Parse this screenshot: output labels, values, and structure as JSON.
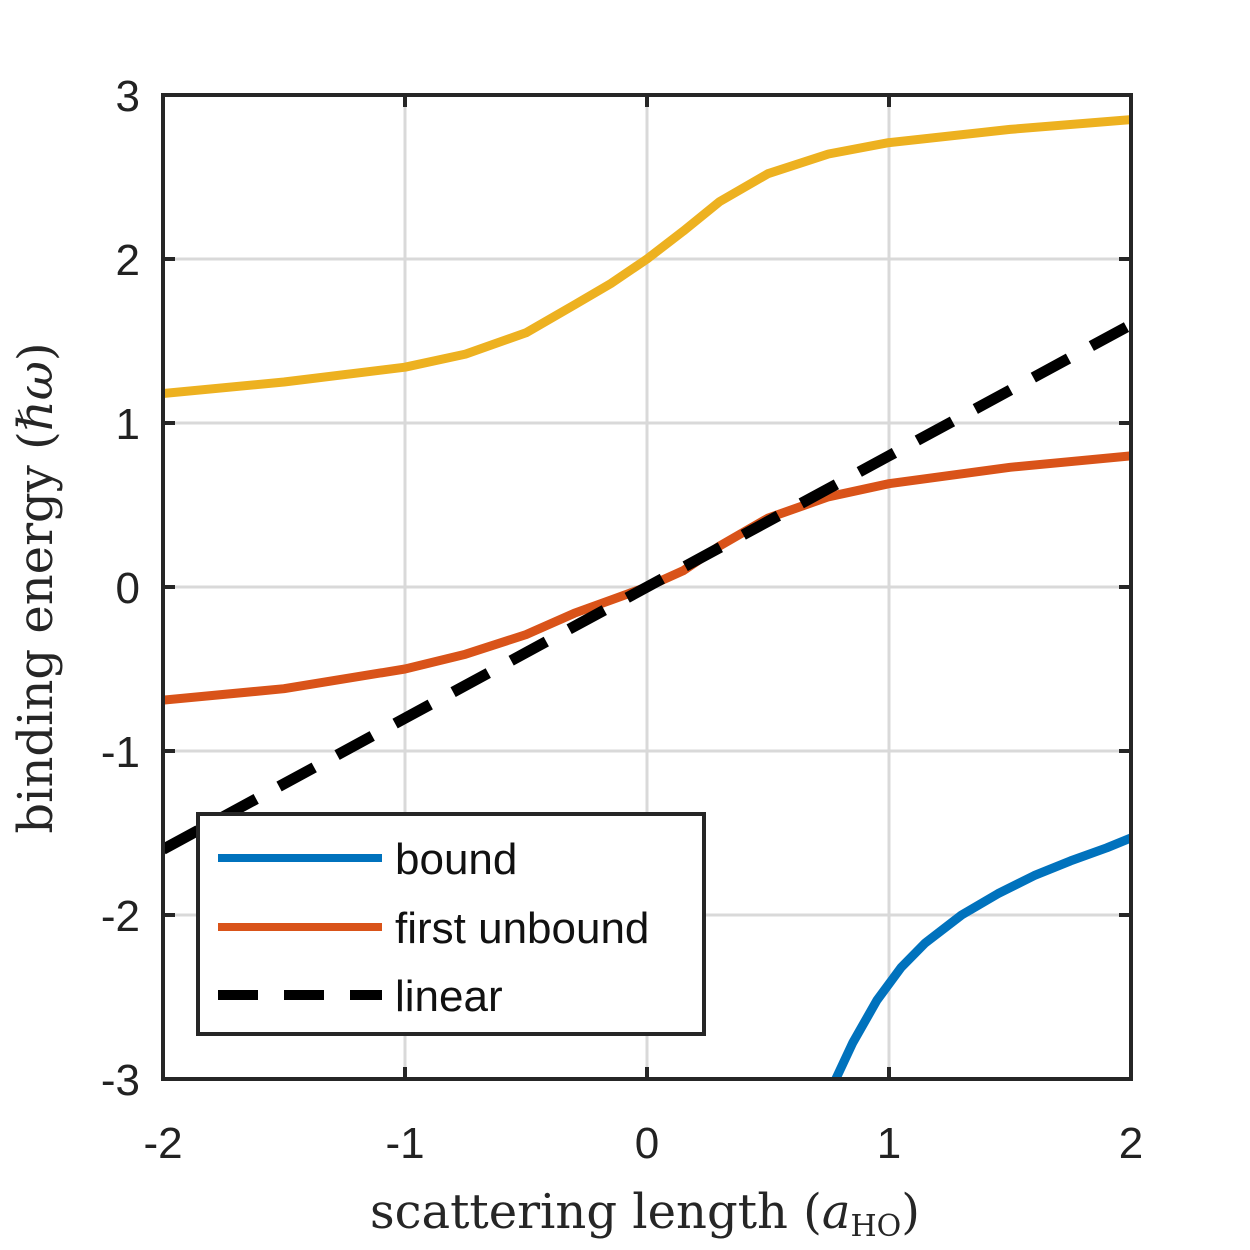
{
  "chart_data": {
    "type": "line",
    "xlabel": "scattering length",
    "xlabel_unit": "a",
    "xlabel_unit_sub": "HO",
    "ylabel": "binding energy",
    "ylabel_unit": "ℏω",
    "xlim": [
      -2,
      2
    ],
    "ylim": [
      -3,
      3
    ],
    "xticks": [
      -2,
      -1,
      0,
      1,
      2
    ],
    "yticks": [
      -3,
      -2,
      -1,
      0,
      1,
      2,
      3
    ],
    "xtick_labels": [
      "-2",
      "-1",
      "0",
      "1",
      "2"
    ],
    "ytick_labels": [
      "-3",
      "-2",
      "-1",
      "0",
      "1",
      "2",
      "3"
    ],
    "grid": true,
    "legend_position": "bottom-left",
    "series": [
      {
        "name": "bound",
        "color": "#0072BD",
        "dash": "solid",
        "in_legend": true,
        "x": [
          0.78,
          0.85,
          0.95,
          1.05,
          1.15,
          1.3,
          1.45,
          1.6,
          1.75,
          1.9,
          2.0
        ],
        "y": [
          -3.0,
          -2.78,
          -2.52,
          -2.32,
          -2.17,
          -2.0,
          -1.87,
          -1.76,
          -1.67,
          -1.59,
          -1.53
        ]
      },
      {
        "name": "first unbound",
        "color": "#D95319",
        "dash": "solid",
        "in_legend": true,
        "x": [
          -2.0,
          -1.5,
          -1.0,
          -0.75,
          -0.5,
          -0.3,
          -0.15,
          0.0,
          0.15,
          0.3,
          0.5,
          0.75,
          1.0,
          1.5,
          2.0
        ],
        "y": [
          -0.69,
          -0.62,
          -0.5,
          -0.41,
          -0.29,
          -0.16,
          -0.08,
          0.0,
          0.1,
          0.25,
          0.42,
          0.55,
          0.63,
          0.73,
          0.8
        ]
      },
      {
        "name": "linear",
        "color": "#000000",
        "dash": "dashed",
        "in_legend": true,
        "x": [
          -2.0,
          2.0
        ],
        "y": [
          -1.6,
          1.6
        ]
      },
      {
        "name": "",
        "color": "#EDB120",
        "dash": "solid",
        "in_legend": false,
        "x": [
          -2.0,
          -1.5,
          -1.0,
          -0.75,
          -0.5,
          -0.3,
          -0.15,
          0.0,
          0.15,
          0.3,
          0.5,
          0.75,
          1.0,
          1.5,
          2.0
        ],
        "y": [
          1.18,
          1.25,
          1.34,
          1.42,
          1.55,
          1.72,
          1.85,
          2.0,
          2.17,
          2.35,
          2.52,
          2.64,
          2.71,
          2.79,
          2.85
        ]
      }
    ]
  }
}
